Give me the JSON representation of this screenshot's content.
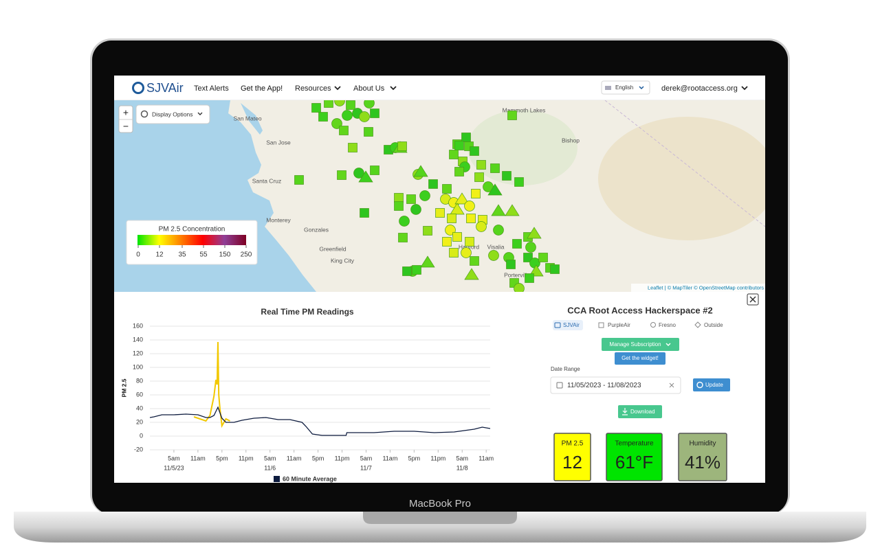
{
  "device_label": "MacBook Pro",
  "nav": {
    "logo": "SJVAir",
    "links": [
      "Text Alerts",
      "Get the App!",
      "Resources",
      "About Us"
    ],
    "language": "English",
    "user": "derek@rootaccess.org"
  },
  "map": {
    "controls": {
      "zoom_in": "+",
      "zoom_out": "−",
      "display_options": "Display Options"
    },
    "places": [
      "San Mateo",
      "San Jose",
      "Santa Cruz",
      "Monterey",
      "Gonzales",
      "Greenfield",
      "King City",
      "Mammoth Lakes",
      "Bishop",
      "Hanford",
      "Visalia",
      "Porterville"
    ],
    "legend": {
      "title": "PM 2.5 Concentration",
      "ticks": [
        0,
        12,
        35,
        55,
        150,
        250
      ]
    },
    "attribution": "Leaflet | © MapTiler © OpenStreetMap contributors"
  },
  "chart_data": {
    "type": "line",
    "title": "Real Time PM Readings",
    "y_label": "PM 2.5",
    "ylim": [
      -20,
      160
    ],
    "yticks": [
      -20,
      0,
      20,
      40,
      60,
      80,
      100,
      120,
      140,
      160
    ],
    "xlim": [
      -1,
      84
    ],
    "xticks": [
      {
        "value": 5,
        "label": "5am"
      },
      {
        "value": 11,
        "label": "11am"
      },
      {
        "value": 17,
        "label": "5pm"
      },
      {
        "value": 23,
        "label": "11pm"
      },
      {
        "value": 29,
        "label": "5am"
      },
      {
        "value": 35,
        "label": "11am"
      },
      {
        "value": 41,
        "label": "5pm"
      },
      {
        "value": 47,
        "label": "11pm"
      },
      {
        "value": 53,
        "label": "5am"
      },
      {
        "value": 59,
        "label": "11am"
      },
      {
        "value": 65,
        "label": "5pm"
      },
      {
        "value": 71,
        "label": "11pm"
      },
      {
        "value": 77,
        "label": "5am"
      },
      {
        "value": 83,
        "label": "11am"
      }
    ],
    "x_date_labels": [
      {
        "value": 5,
        "label": "11/5/23"
      },
      {
        "value": 29,
        "label": "11/6"
      },
      {
        "value": 53,
        "label": "11/7"
      },
      {
        "value": 77,
        "label": "11/8"
      }
    ],
    "grid": true,
    "series": [
      {
        "color": "#f2c800",
        "x": [
          10,
          13,
          14,
          15,
          15.5,
          15.8,
          16,
          16.2,
          16.5,
          17,
          18,
          19
        ],
        "values": [
          28,
          22,
          30,
          58,
          82,
          75,
          137,
          60,
          40,
          15,
          25,
          22
        ]
      },
      {
        "name": "60 Minute Average",
        "color": "#0d1b3e",
        "x": [
          -1,
          0,
          2,
          5,
          8,
          11,
          13,
          14,
          15,
          16,
          17,
          18,
          20,
          22,
          25,
          28,
          31,
          34,
          37,
          38,
          39.6,
          42,
          45,
          48,
          48.2,
          51,
          55,
          60,
          65,
          70,
          75,
          80,
          82,
          84
        ],
        "values": [
          27,
          28,
          31,
          31,
          32,
          31,
          27,
          27,
          30,
          42,
          26,
          20,
          20,
          23,
          26,
          27,
          24,
          24,
          20,
          14,
          3,
          1,
          1,
          1,
          5,
          5,
          5,
          7,
          7,
          5,
          6,
          10,
          13,
          11
        ]
      }
    ]
  },
  "sensor": {
    "title": "CCA Root Access Hackerspace #2",
    "tags": [
      "SJVAir",
      "PurpleAir",
      "Fresno",
      "Outside"
    ],
    "manage": "Manage Subscription",
    "widget": "Get the widget!",
    "date_range_label": "Date Range",
    "date_range": "11/05/2023 - 11/08/2023",
    "update": "Update",
    "download": "Download",
    "readings": [
      {
        "label": "PM 2.5",
        "value": "12",
        "color": "#ffff00"
      },
      {
        "label": "Temperature",
        "value": "61°F",
        "color": "#00e400"
      },
      {
        "label": "Humidity",
        "value": "41%",
        "color": "#9db57c"
      }
    ]
  }
}
